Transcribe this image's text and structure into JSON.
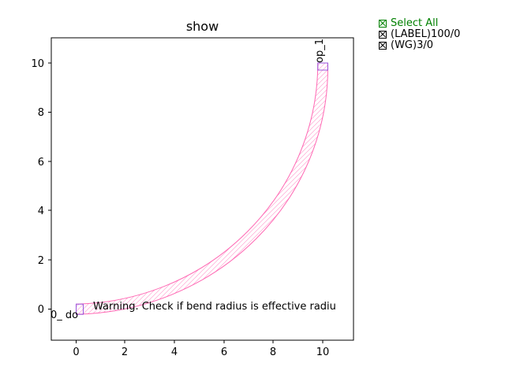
{
  "plot": {
    "title": "show",
    "x_ticks": [
      "0",
      "2",
      "4",
      "6",
      "8",
      "10"
    ],
    "y_ticks": [
      "0",
      "2",
      "4",
      "6",
      "8",
      "10"
    ]
  },
  "legend": {
    "select_all": "Select All",
    "items": [
      "(LABEL)100/0",
      "(WG)3/0"
    ]
  },
  "labels": {
    "port_o1": "o1",
    "port_o1_fragment": "0_ do",
    "port_op1": "op_1",
    "warning": "Warning. Check if bend radius is effective radiu"
  },
  "colors": {
    "waveguide": "#ff69b4",
    "port_box": "#9955dd",
    "select_all": "#008000"
  }
}
